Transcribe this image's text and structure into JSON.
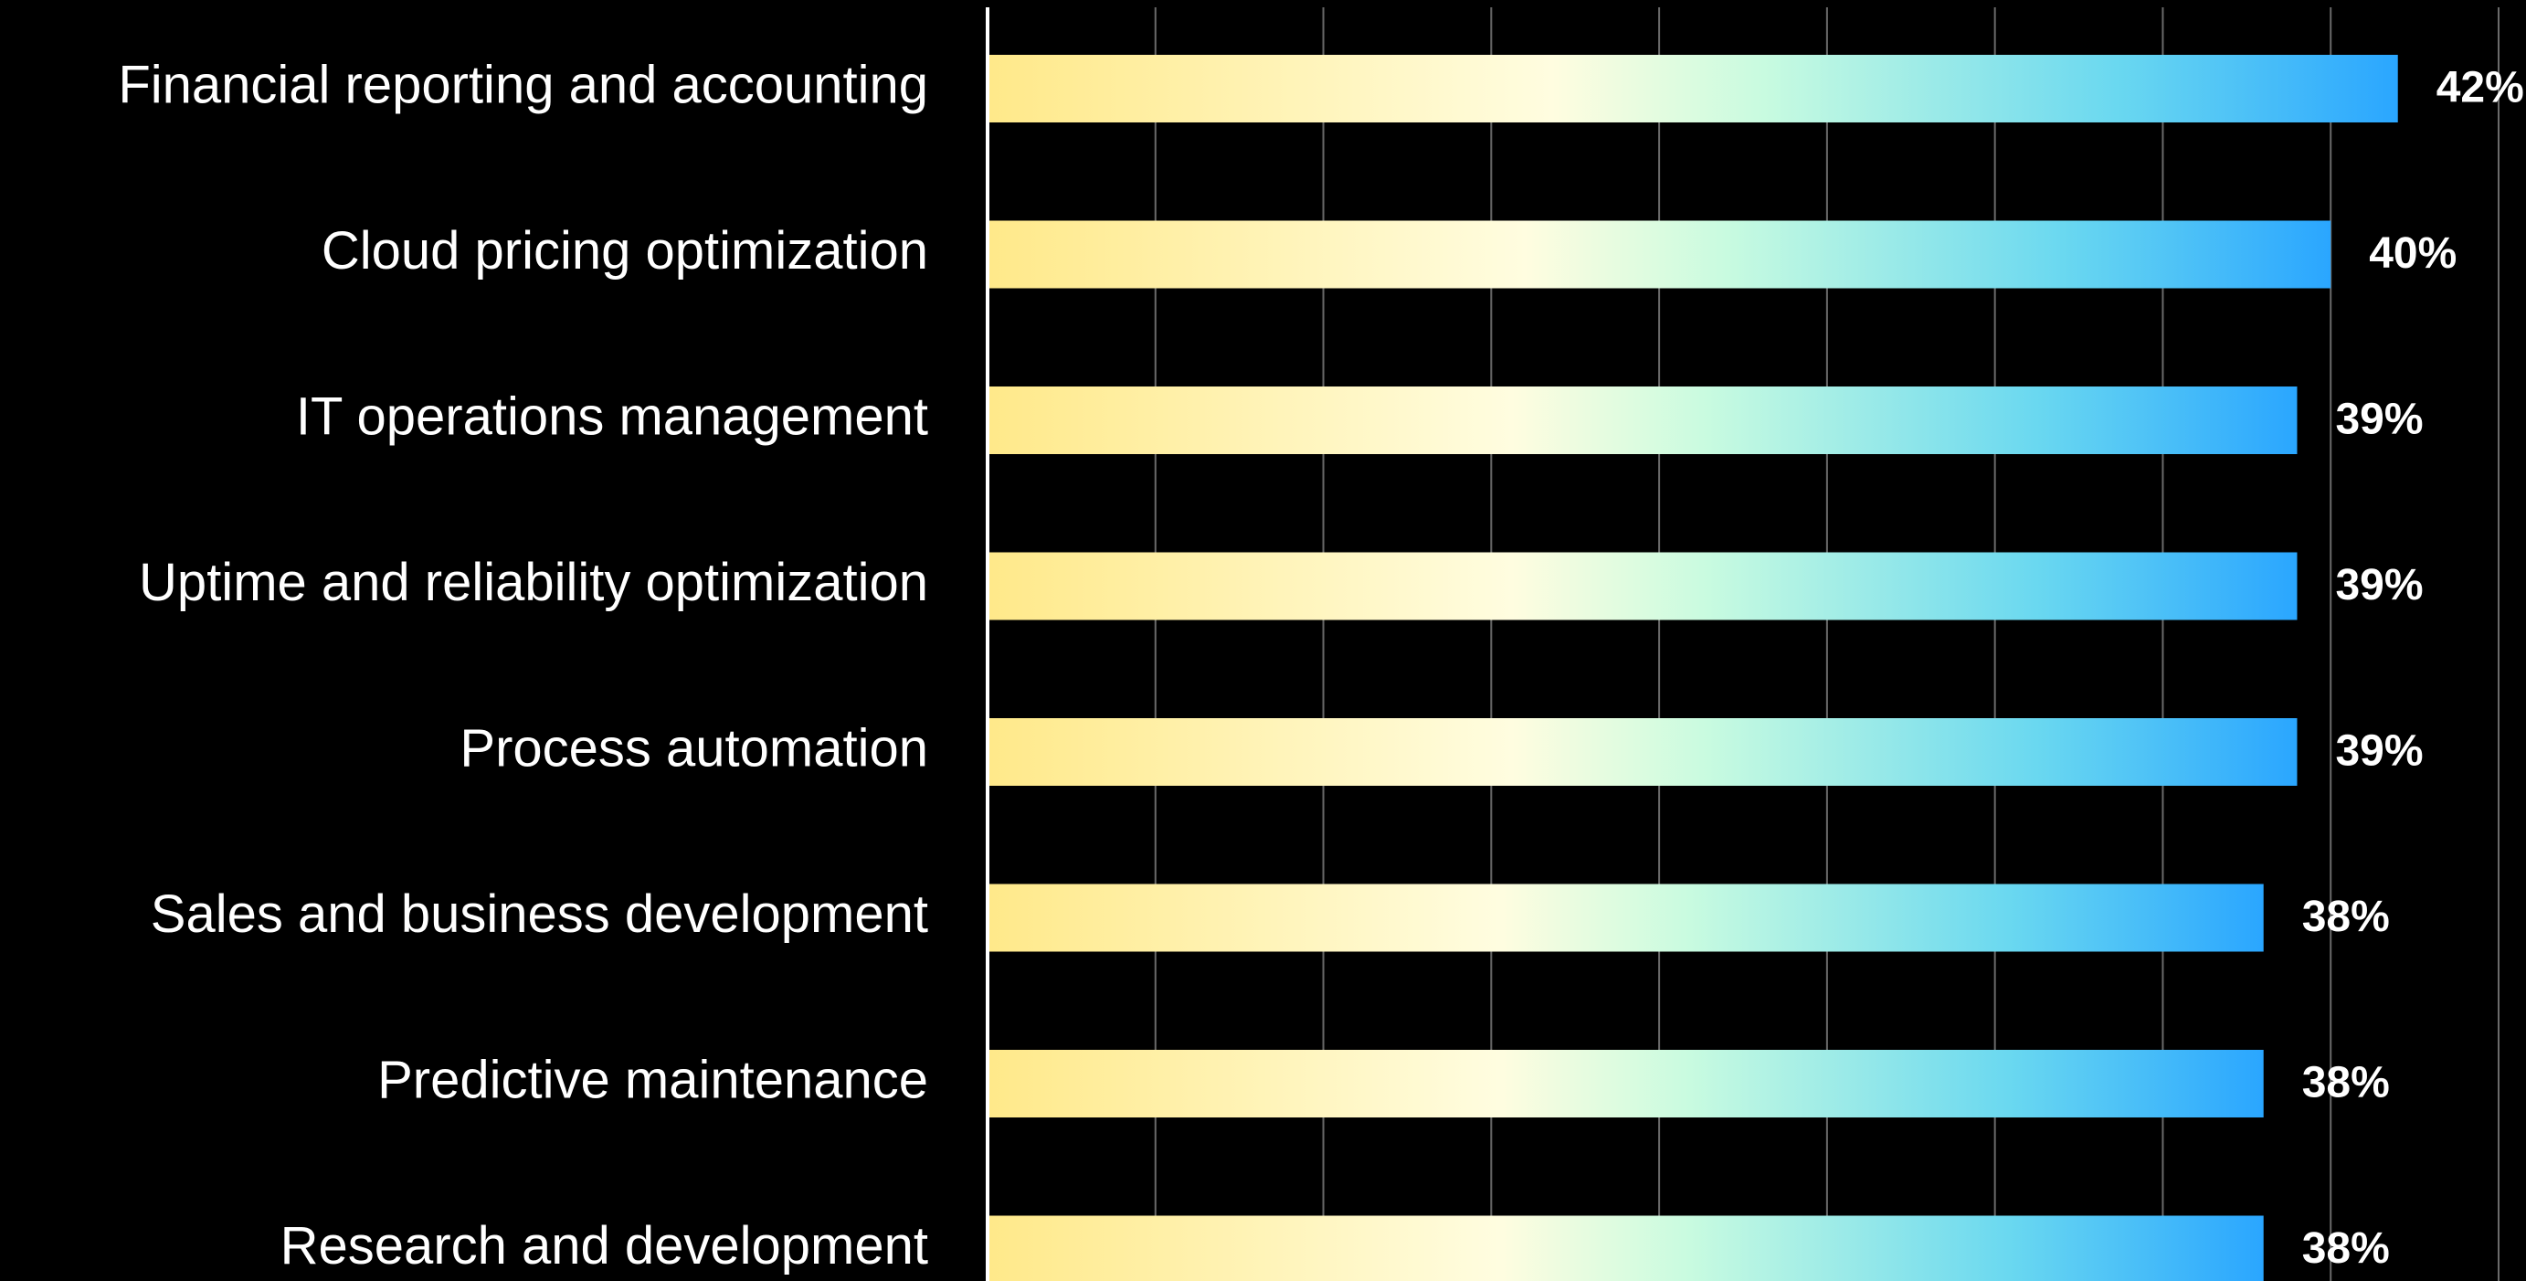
{
  "chart_data": {
    "type": "barh",
    "categories": [
      "Financial reporting and accounting",
      "Cloud pricing optimization",
      "IT operations management",
      "Uptime and reliability optimization",
      "Process automation",
      "Sales and business development",
      "Predictive maintenance",
      "Research and development"
    ],
    "values": [
      42,
      40,
      39,
      39,
      39,
      38,
      38,
      38
    ],
    "value_labels": [
      "42%",
      "40%",
      "39%",
      "39%",
      "39%",
      "38%",
      "38%",
      "38%"
    ],
    "colors": [
      "#ffe98a",
      "#fffde0",
      "#c8fbe0",
      "#6ad8f0",
      "#2aa6ff"
    ],
    "xlim": [
      0,
      45
    ],
    "xticks": [
      0,
      5,
      10,
      15,
      20,
      25,
      30,
      35,
      40,
      45
    ],
    "grid": true
  }
}
